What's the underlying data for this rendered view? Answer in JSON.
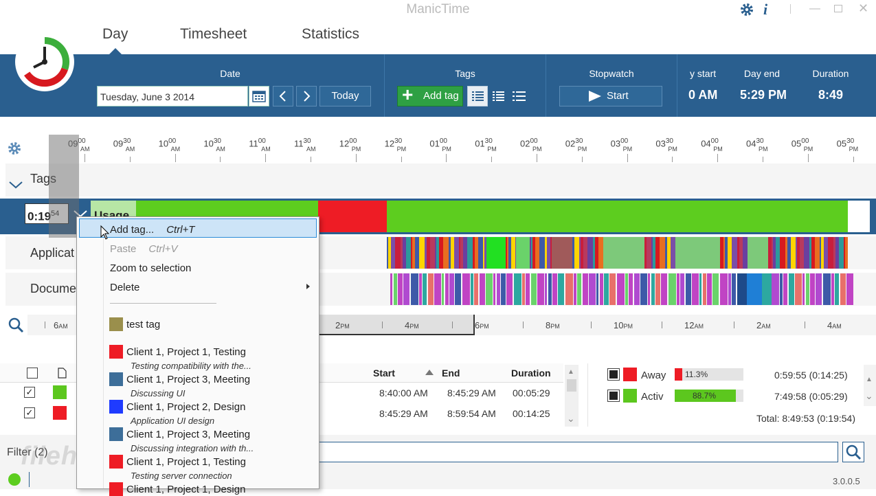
{
  "window": {
    "title": "ManicTime"
  },
  "nav_tabs": [
    {
      "label": "Day"
    },
    {
      "label": "Timesheet"
    },
    {
      "label": "Statistics"
    }
  ],
  "ribbon": {
    "date_label": "Date",
    "date_value": "Tuesday, June 3 2014",
    "today_label": "Today",
    "tags_label": "Tags",
    "add_tag_label": "Add tag",
    "stopwatch_label": "Stopwatch",
    "start_label": "Start",
    "day_start_label": "y start",
    "day_start_value": "0 AM",
    "day_end_label": "Day end",
    "day_end_value": "5:29 PM",
    "duration_label": "Duration",
    "duration_value": "8:49"
  },
  "timeline": {
    "ticks": [
      {
        "h": "09",
        "m": "00",
        "p": "AM"
      },
      {
        "h": "09",
        "m": "30",
        "p": "AM"
      },
      {
        "h": "10",
        "m": "00",
        "p": "AM"
      },
      {
        "h": "10",
        "m": "30",
        "p": "AM"
      },
      {
        "h": "11",
        "m": "00",
        "p": "AM"
      },
      {
        "h": "11",
        "m": "30",
        "p": "AM"
      },
      {
        "h": "12",
        "m": "00",
        "p": "PM"
      },
      {
        "h": "12",
        "m": "30",
        "p": "PM"
      },
      {
        "h": "01",
        "m": "00",
        "p": "PM"
      },
      {
        "h": "01",
        "m": "30",
        "p": "PM"
      },
      {
        "h": "02",
        "m": "00",
        "p": "PM"
      },
      {
        "h": "02",
        "m": "30",
        "p": "PM"
      },
      {
        "h": "03",
        "m": "00",
        "p": "PM"
      },
      {
        "h": "03",
        "m": "30",
        "p": "PM"
      },
      {
        "h": "04",
        "m": "00",
        "p": "PM"
      },
      {
        "h": "04",
        "m": "30",
        "p": "PM"
      },
      {
        "h": "05",
        "m": "00",
        "p": "PM"
      },
      {
        "h": "05",
        "m": "30",
        "p": "PM"
      }
    ],
    "rows": {
      "tags": "Tags",
      "usage": "Usage",
      "applications": "Applicat",
      "documents": "Docume"
    },
    "selection_duration": "0:19",
    "selection_seconds": "54"
  },
  "overview_axis": [
    {
      "n": "6",
      "p": "AM"
    },
    {
      "n": "2",
      "p": "PM"
    },
    {
      "n": "4",
      "p": "PM"
    },
    {
      "n": "6",
      "p": "PM"
    },
    {
      "n": "8",
      "p": "PM"
    },
    {
      "n": "10",
      "p": "PM"
    },
    {
      "n": "12",
      "p": "AM"
    },
    {
      "n": "2",
      "p": "AM"
    },
    {
      "n": "4",
      "p": "AM"
    }
  ],
  "context_menu": {
    "items": [
      {
        "label": "Add tag...",
        "shortcut": "Ctrl+T"
      },
      {
        "label": "Paste",
        "shortcut": "Ctrl+V"
      },
      {
        "label": "Zoom to selection",
        "shortcut": ""
      },
      {
        "label": "Delete",
        "shortcut": ""
      }
    ],
    "tags": [
      {
        "label": "test tag",
        "sub": "",
        "color": "#9a8f4c"
      },
      {
        "label": "Client 1, Project 1, Testing",
        "sub": "Testing compatibility with the...",
        "color": "#ee1c25"
      },
      {
        "label": "Client 1, Project 3, Meeting",
        "sub": "Discussing UI",
        "color": "#3d6e99"
      },
      {
        "label": "Client 1, Project 2, Design",
        "sub": "Application UI design",
        "color": "#1f3bff"
      },
      {
        "label": "Client 1, Project 3, Meeting",
        "sub": "Discussing integration with th...",
        "color": "#3d6e99"
      },
      {
        "label": "Client 1, Project 1, Testing",
        "sub": "Testing server connection",
        "color": "#ee1c25"
      },
      {
        "label": "Client 1, Project 1, Design",
        "sub": "",
        "color": "#ee1c25"
      }
    ]
  },
  "activity_table": {
    "headers": {
      "start": "Start",
      "end": "End",
      "duration": "Duration"
    },
    "rows": [
      {
        "color": "#5cc71e",
        "start": "8:40:00 AM",
        "end": "8:45:29 AM",
        "duration": "00:05:29"
      },
      {
        "color": "#ee1c25",
        "start": "8:45:29 AM",
        "end": "8:59:54 AM",
        "duration": "00:14:25"
      }
    ]
  },
  "summary": {
    "rows": [
      {
        "color": "#ee1c25",
        "label": "Away",
        "percent": "11.3%",
        "fraction": 0.113,
        "time": "0:59:55 (0:14:25)"
      },
      {
        "color": "#5cc71e",
        "label": "Activ",
        "percent": "88.7%",
        "fraction": 0.887,
        "time": "7:49:58 (0:05:29)"
      }
    ],
    "total": "Total: 8:49:53 (0:19:54)"
  },
  "filter": {
    "label": "Filter (2)"
  },
  "watermark": "filehorse.com",
  "version": "3.0.0.5"
}
